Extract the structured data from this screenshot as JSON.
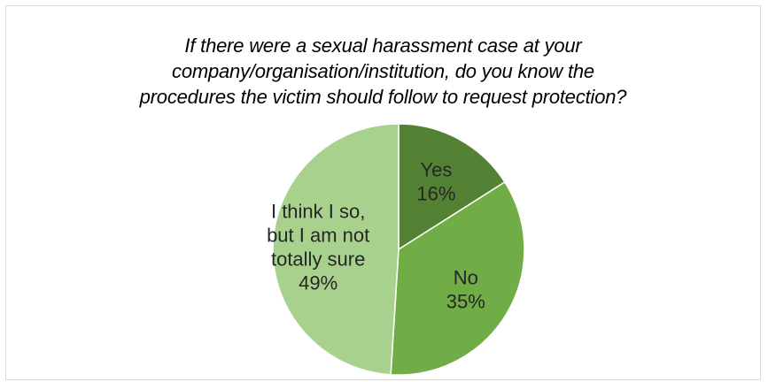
{
  "chart_data": {
    "type": "pie",
    "title": [
      "If there were a sexual harassment case at your",
      "company/organisation/institution, do you know the",
      "procedures the victim should follow to request protection?"
    ],
    "slices": [
      {
        "label": [
          "Yes"
        ],
        "percent_label": "16%",
        "value": 16,
        "color": "#548235"
      },
      {
        "label": [
          "No"
        ],
        "percent_label": "35%",
        "value": 35,
        "color": "#70ad47"
      },
      {
        "label": [
          "I think I so,",
          "but I am not",
          "totally sure"
        ],
        "percent_label": "49%",
        "value": 49,
        "color": "#a9d18e"
      }
    ],
    "start_angle_deg": 0,
    "direction": "clockwise",
    "legend": "none",
    "slice_border_color": "#ffffff"
  }
}
